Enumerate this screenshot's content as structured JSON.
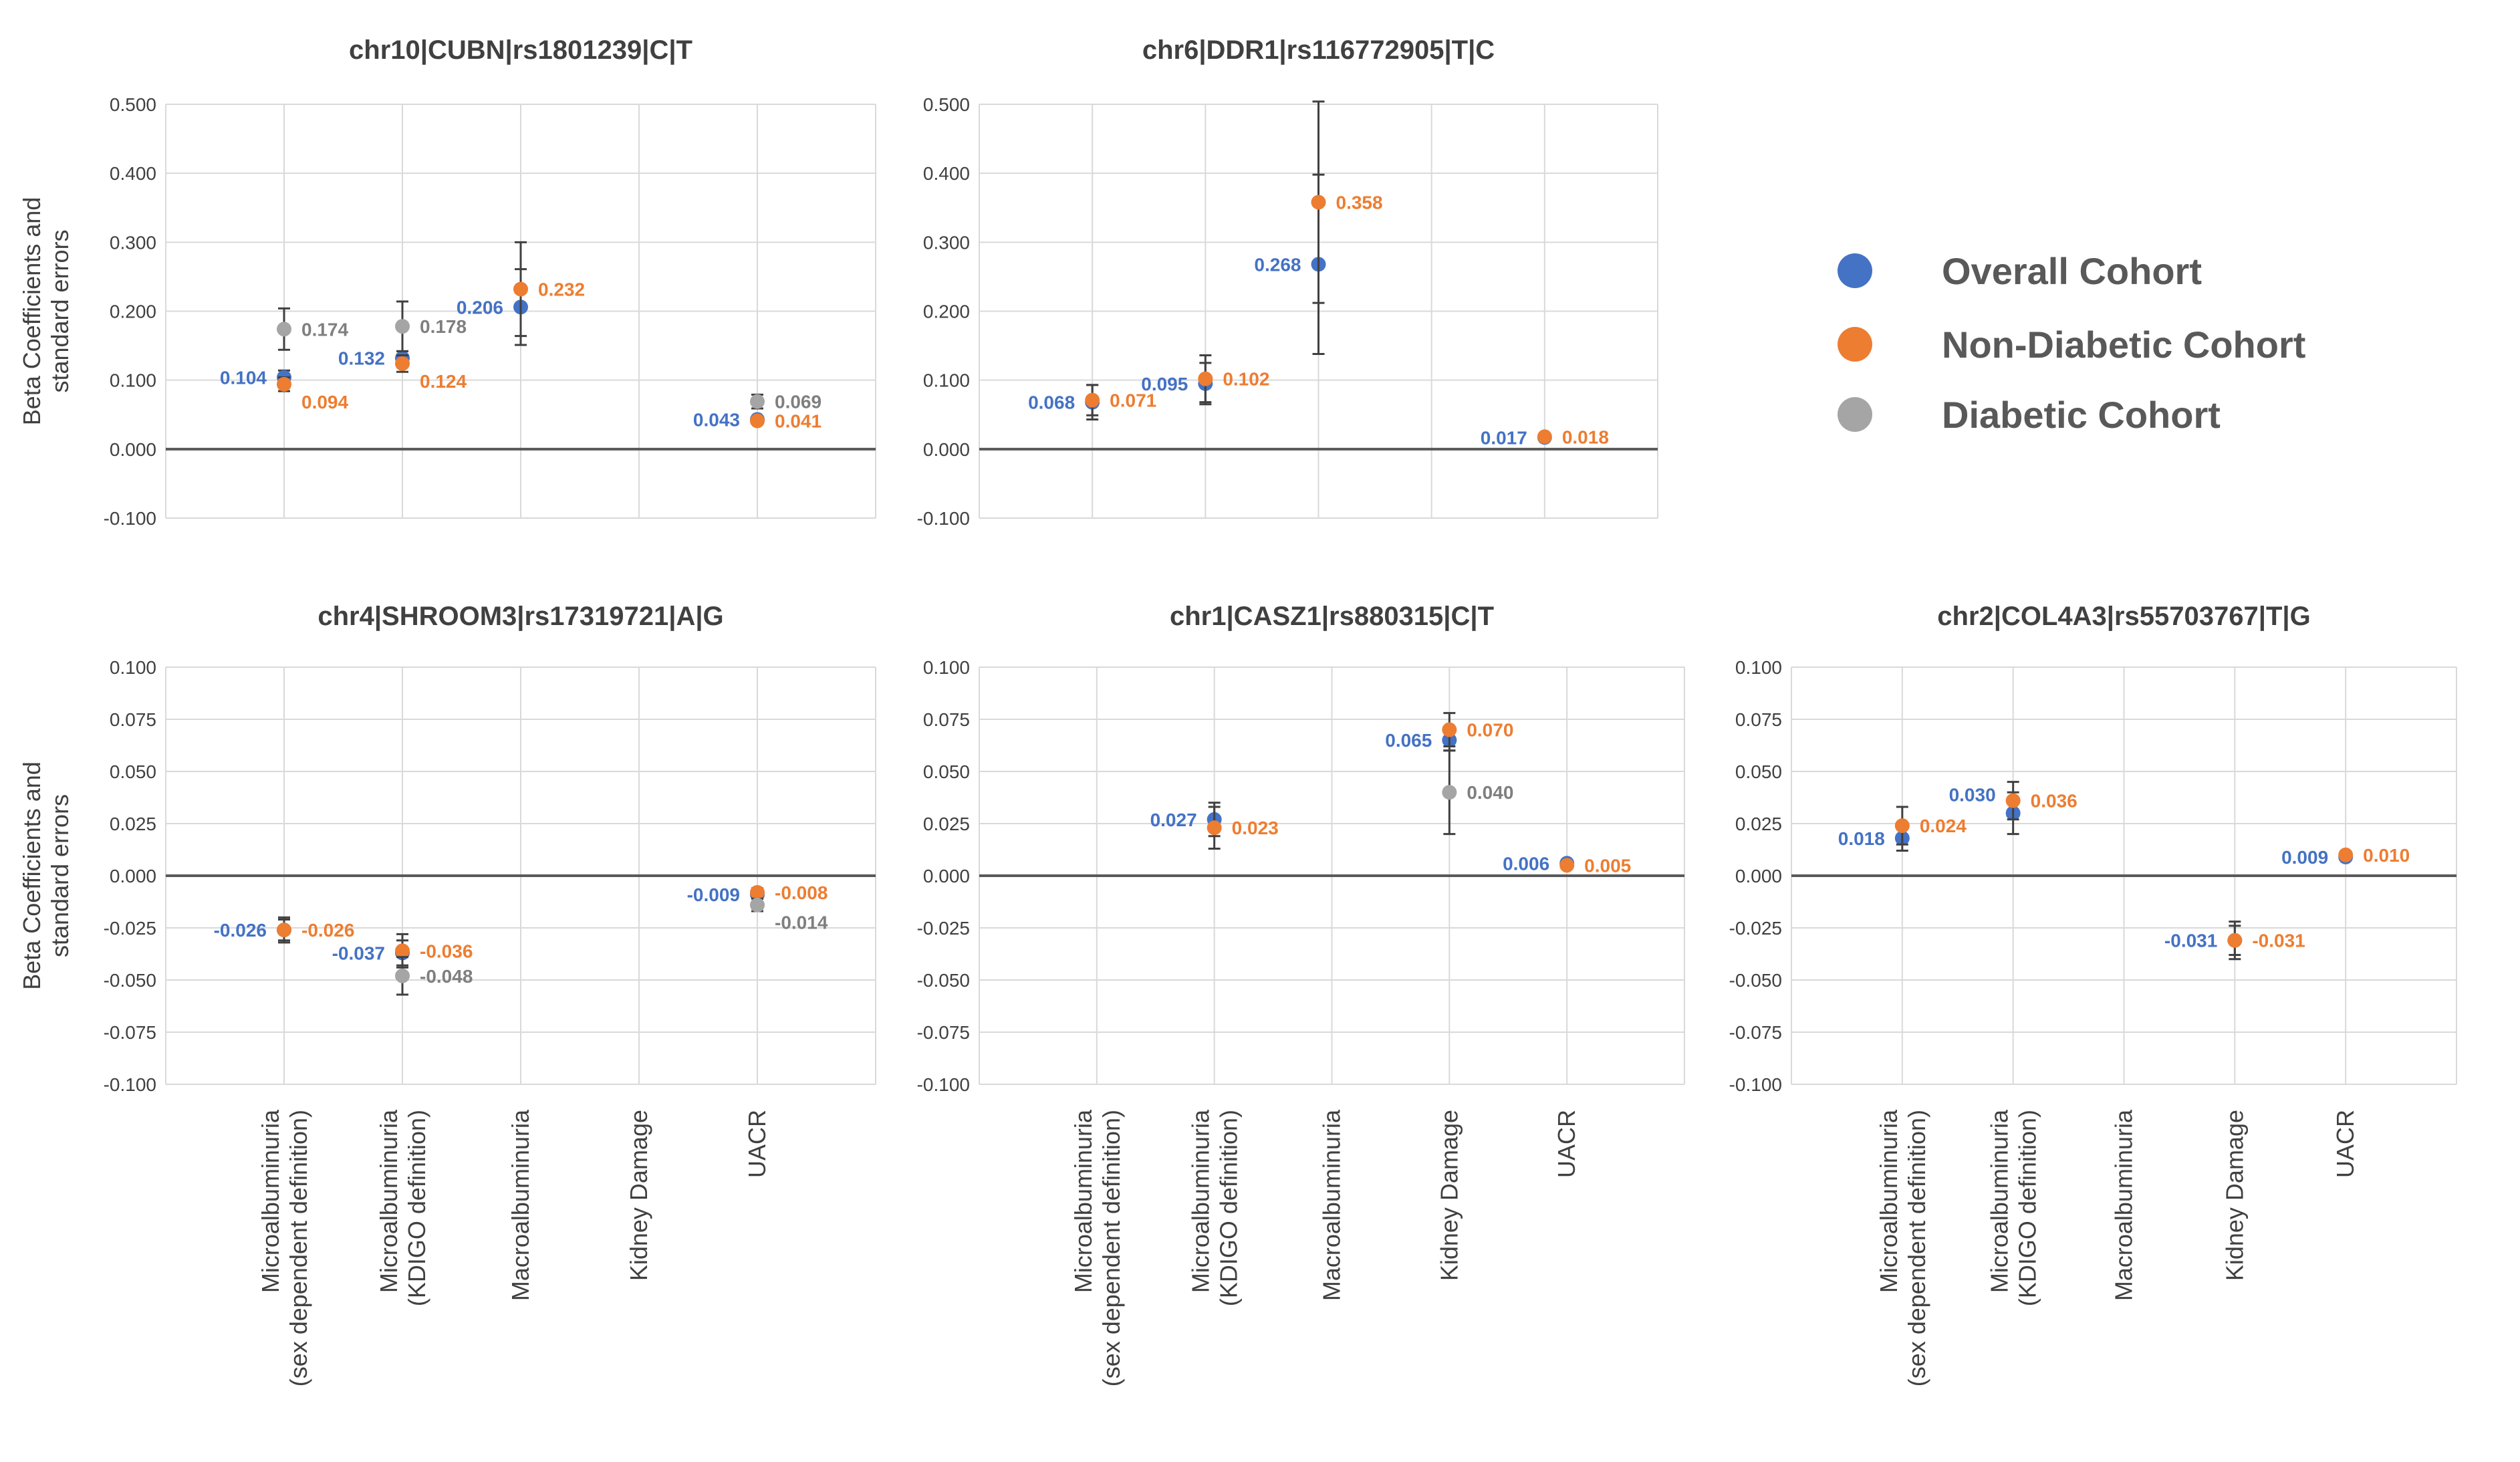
{
  "colors": {
    "overall": "#4472C4",
    "non_diabetic": "#ED7D31",
    "diabetic": "#A5A5A5",
    "grid": "#D9D9D9",
    "zero_axis": "#595959",
    "text": "#404040"
  },
  "shared": {
    "ylabel_lines": [
      "Beta Coefficients and",
      "standard errors"
    ],
    "categories": [
      [
        "Microalbuminuria",
        "(sex dependent definition)"
      ],
      [
        "Microalbuminuria",
        "(KDIGO definition)"
      ],
      [
        "Macroalbuminuria"
      ],
      [
        "Kidney Damage"
      ],
      [
        "UACR"
      ]
    ]
  },
  "legend": {
    "entries": [
      {
        "name": "Overall Cohort",
        "color_key": "overall"
      },
      {
        "name": "Non-Diabetic Cohort",
        "color_key": "non_diabetic"
      },
      {
        "name": "Diabetic Cohort",
        "color_key": "diabetic"
      }
    ]
  },
  "chart_data": [
    {
      "id": "cubn",
      "type": "scatter",
      "title": "chr10|CUBN|rs1801239|C|T",
      "ylim": [
        -0.1,
        0.5
      ],
      "yticks": [
        "0.500",
        "0.400",
        "0.300",
        "0.200",
        "0.100",
        "0.000",
        "-0.100"
      ],
      "ytick_values": [
        0.5,
        0.4,
        0.3,
        0.2,
        0.1,
        0.0,
        -0.1
      ],
      "show_xlabels": false,
      "series": [
        {
          "name": "Overall Cohort",
          "color_key": "overall",
          "points": [
            {
              "cat": 0,
              "value": 0.104,
              "err": 0.01,
              "label": "0.104",
              "lp": "left"
            },
            {
              "cat": 1,
              "value": 0.132,
              "err": 0.01,
              "label": "0.132",
              "lp": "left"
            },
            {
              "cat": 2,
              "value": 0.206,
              "err": 0.055,
              "label": "0.206",
              "lp": "left"
            },
            {
              "cat": 4,
              "value": 0.043,
              "err": 0.004,
              "label": "0.043",
              "lp": "left"
            }
          ]
        },
        {
          "name": "Non-Diabetic Cohort",
          "color_key": "non_diabetic",
          "points": [
            {
              "cat": 0,
              "value": 0.094,
              "err": 0.01,
              "label": "0.094",
              "lp": "right-below"
            },
            {
              "cat": 1,
              "value": 0.124,
              "err": 0.012,
              "label": "0.124",
              "lp": "right-below"
            },
            {
              "cat": 2,
              "value": 0.232,
              "err": 0.068,
              "label": "0.232",
              "lp": "right"
            },
            {
              "cat": 4,
              "value": 0.041,
              "err": 0.004,
              "label": "0.041",
              "lp": "right"
            }
          ]
        },
        {
          "name": "Diabetic Cohort",
          "color_key": "diabetic",
          "points": [
            {
              "cat": 0,
              "value": 0.174,
              "err": 0.03,
              "label": "0.174",
              "lp": "right"
            },
            {
              "cat": 1,
              "value": 0.178,
              "err": 0.036,
              "label": "0.178",
              "lp": "right"
            },
            {
              "cat": 4,
              "value": 0.069,
              "err": 0.01,
              "label": "0.069",
              "lp": "right"
            }
          ]
        }
      ]
    },
    {
      "id": "ddr1",
      "type": "scatter",
      "title": "chr6|DDR1|rs116772905|T|C",
      "ylim": [
        -0.1,
        0.5
      ],
      "yticks": [
        "0.500",
        "0.400",
        "0.300",
        "0.200",
        "0.100",
        "0.000",
        "-0.100"
      ],
      "ytick_values": [
        0.5,
        0.4,
        0.3,
        0.2,
        0.1,
        0.0,
        -0.1
      ],
      "show_xlabels": false,
      "series": [
        {
          "name": "Overall Cohort",
          "color_key": "overall",
          "points": [
            {
              "cat": 0,
              "value": 0.068,
              "err": 0.025,
              "label": "0.068",
              "lp": "left"
            },
            {
              "cat": 1,
              "value": 0.095,
              "err": 0.03,
              "label": "0.095",
              "lp": "left"
            },
            {
              "cat": 2,
              "value": 0.268,
              "err": 0.13,
              "label": "0.268",
              "lp": "left"
            },
            {
              "cat": 4,
              "value": 0.017,
              "err": 0.002,
              "label": "0.017",
              "lp": "left"
            }
          ]
        },
        {
          "name": "Non-Diabetic Cohort",
          "color_key": "non_diabetic",
          "points": [
            {
              "cat": 0,
              "value": 0.071,
              "err": 0.022,
              "label": "0.071",
              "lp": "right"
            },
            {
              "cat": 1,
              "value": 0.102,
              "err": 0.034,
              "label": "0.102",
              "lp": "right"
            },
            {
              "cat": 2,
              "value": 0.358,
              "err": 0.146,
              "label": "0.358",
              "lp": "right"
            },
            {
              "cat": 4,
              "value": 0.018,
              "err": 0.002,
              "label": "0.018",
              "lp": "right"
            }
          ]
        }
      ]
    },
    {
      "id": "shroom3",
      "type": "scatter",
      "title": "chr4|SHROOM3|rs17319721|A|G",
      "ylim": [
        -0.1,
        0.1
      ],
      "yticks": [
        "0.100",
        "0.075",
        "0.050",
        "0.025",
        "0.000",
        "-0.025",
        "-0.050",
        "-0.075",
        "-0.100"
      ],
      "ytick_values": [
        0.1,
        0.075,
        0.05,
        0.025,
        0.0,
        -0.025,
        -0.05,
        -0.075,
        -0.1
      ],
      "show_xlabels": true,
      "series": [
        {
          "name": "Overall Cohort",
          "color_key": "overall",
          "points": [
            {
              "cat": 0,
              "value": -0.026,
              "err": 0.005,
              "label": "-0.026",
              "lp": "left"
            },
            {
              "cat": 1,
              "value": -0.037,
              "err": 0.006,
              "label": "-0.037",
              "lp": "left"
            },
            {
              "cat": 4,
              "value": -0.009,
              "err": 0.002,
              "label": "-0.009",
              "lp": "left"
            }
          ]
        },
        {
          "name": "Non-Diabetic Cohort",
          "color_key": "non_diabetic",
          "points": [
            {
              "cat": 0,
              "value": -0.026,
              "err": 0.006,
              "label": "-0.026",
              "lp": "right"
            },
            {
              "cat": 1,
              "value": -0.036,
              "err": 0.008,
              "label": "-0.036",
              "lp": "right"
            },
            {
              "cat": 4,
              "value": -0.008,
              "err": 0.002,
              "label": "-0.008",
              "lp": "right"
            }
          ]
        },
        {
          "name": "Diabetic Cohort",
          "color_key": "diabetic",
          "points": [
            {
              "cat": 1,
              "value": -0.048,
              "err": 0.009,
              "label": "-0.048",
              "lp": "right"
            },
            {
              "cat": 4,
              "value": -0.014,
              "err": 0.003,
              "label": "-0.014",
              "lp": "right-below"
            }
          ]
        }
      ]
    },
    {
      "id": "casz1",
      "type": "scatter",
      "title": "chr1|CASZ1|rs880315|C|T",
      "ylim": [
        -0.1,
        0.1
      ],
      "yticks": [
        "0.100",
        "0.075",
        "0.050",
        "0.025",
        "0.000",
        "-0.025",
        "-0.050",
        "-0.075",
        "-0.100"
      ],
      "ytick_values": [
        0.1,
        0.075,
        0.05,
        0.025,
        0.0,
        -0.025,
        -0.05,
        -0.075,
        -0.1
      ],
      "show_xlabels": true,
      "series": [
        {
          "name": "Overall Cohort",
          "color_key": "overall",
          "points": [
            {
              "cat": 1,
              "value": 0.027,
              "err": 0.008,
              "label": "0.027",
              "lp": "left"
            },
            {
              "cat": 3,
              "value": 0.065,
              "err": 0.005,
              "label": "0.065",
              "lp": "left"
            },
            {
              "cat": 4,
              "value": 0.006,
              "err": 0.001,
              "label": "0.006",
              "lp": "left"
            }
          ]
        },
        {
          "name": "Non-Diabetic Cohort",
          "color_key": "non_diabetic",
          "points": [
            {
              "cat": 1,
              "value": 0.023,
              "err": 0.01,
              "label": "0.023",
              "lp": "right"
            },
            {
              "cat": 3,
              "value": 0.07,
              "err": 0.008,
              "label": "0.070",
              "lp": "right"
            },
            {
              "cat": 4,
              "value": 0.005,
              "err": 0.001,
              "label": "0.005",
              "lp": "right"
            }
          ]
        },
        {
          "name": "Diabetic Cohort",
          "color_key": "diabetic",
          "points": [
            {
              "cat": 3,
              "value": 0.04,
              "err": 0.02,
              "label": "0.040",
              "lp": "right"
            }
          ]
        }
      ]
    },
    {
      "id": "col4a3",
      "type": "scatter",
      "title": "chr2|COL4A3|rs55703767|T|G",
      "ylim": [
        -0.1,
        0.1
      ],
      "yticks": [
        "0.100",
        "0.075",
        "0.050",
        "0.025",
        "0.000",
        "-0.025",
        "-0.050",
        "-0.075",
        "-0.100"
      ],
      "ytick_values": [
        0.1,
        0.075,
        0.05,
        0.025,
        0.0,
        -0.025,
        -0.05,
        -0.075,
        -0.1
      ],
      "show_xlabels": true,
      "series": [
        {
          "name": "Overall Cohort",
          "color_key": "overall",
          "points": [
            {
              "cat": 0,
              "value": 0.018,
              "err": 0.006,
              "label": "0.018",
              "lp": "left"
            },
            {
              "cat": 1,
              "value": 0.03,
              "err": 0.01,
              "label": "0.030",
              "lp": "left-above"
            },
            {
              "cat": 3,
              "value": -0.031,
              "err": 0.009,
              "label": "-0.031",
              "lp": "left"
            },
            {
              "cat": 4,
              "value": 0.009,
              "err": 0.001,
              "label": "0.009",
              "lp": "left"
            }
          ]
        },
        {
          "name": "Non-Diabetic Cohort",
          "color_key": "non_diabetic",
          "points": [
            {
              "cat": 0,
              "value": 0.024,
              "err": 0.009,
              "label": "0.024",
              "lp": "right"
            },
            {
              "cat": 1,
              "value": 0.036,
              "err": 0.009,
              "label": "0.036",
              "lp": "right"
            },
            {
              "cat": 3,
              "value": -0.031,
              "err": 0.007,
              "label": "-0.031",
              "lp": "right"
            },
            {
              "cat": 4,
              "value": 0.01,
              "err": 0.001,
              "label": "0.010",
              "lp": "right"
            }
          ]
        }
      ]
    }
  ]
}
